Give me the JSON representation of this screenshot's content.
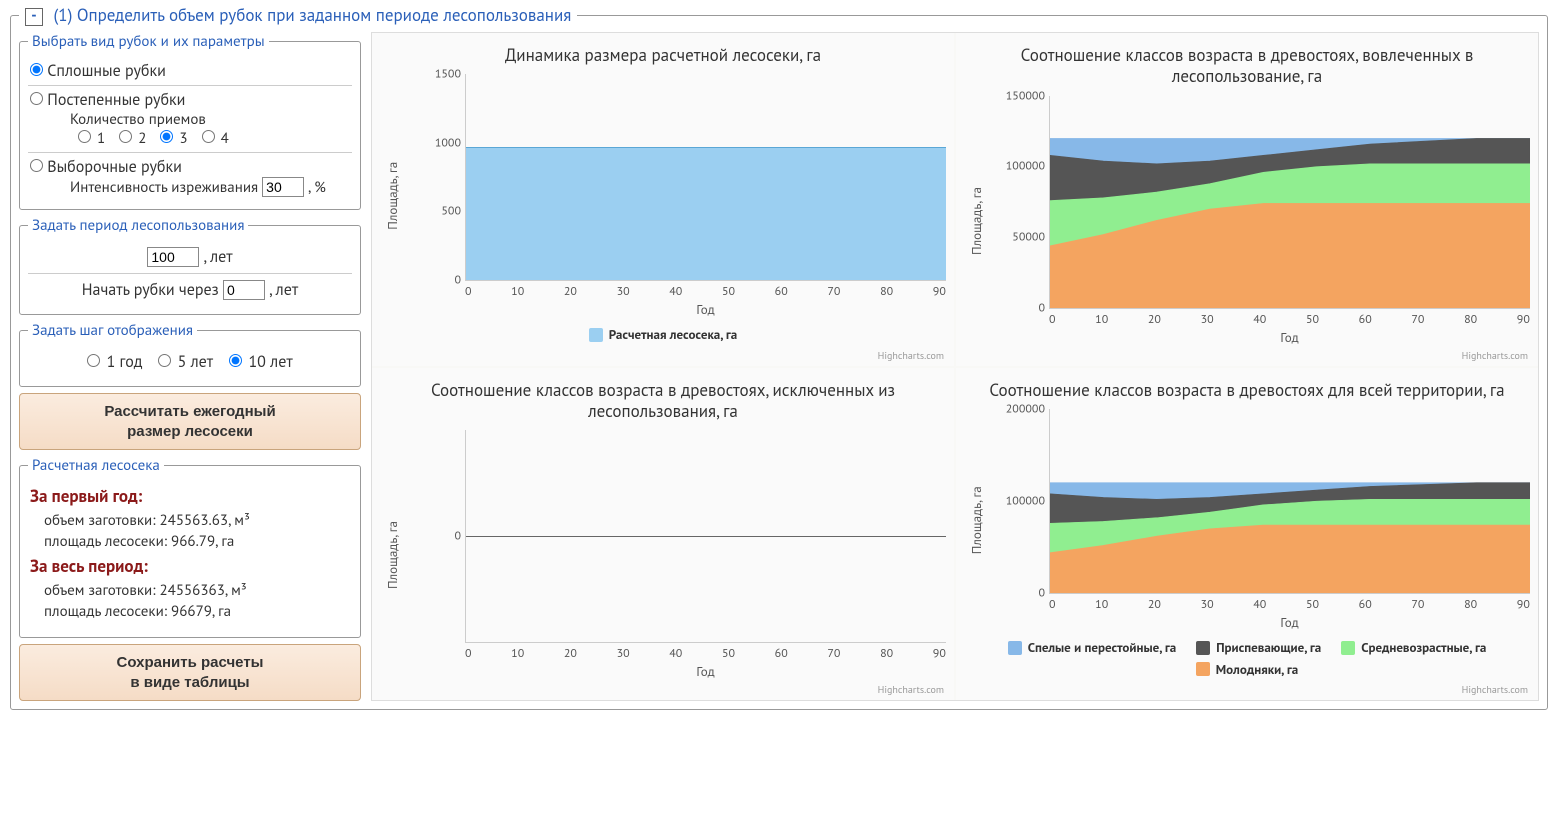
{
  "main_title": "(1) Определить объем рубок при заданном периоде лесопользования",
  "collapse_glyph": "-",
  "cutting_types_legend": "Выбрать вид рубок и их параметры",
  "opt_clear": "Сплошные рубки",
  "opt_gradual": "Постепенные рубки",
  "gradual_count_label": "Количество приемов",
  "gradual_options": [
    "1",
    "2",
    "3",
    "4"
  ],
  "gradual_selected": "3",
  "opt_selective": "Выборочные рубки",
  "selective_intensity_label": "Интенсивность изреживания",
  "selective_intensity_value": "30",
  "selective_intensity_unit": ", %",
  "period_legend": "Задать период лесопользования",
  "period_value": "100",
  "period_unit": ", лет",
  "start_after_label": "Начать рубки через",
  "start_after_value": "0",
  "start_after_unit": ", лет",
  "step_legend": "Задать шаг отображения",
  "step_options": [
    "1 год",
    "5 лет",
    "10 лет"
  ],
  "step_selected": "10 лет",
  "calc_btn_l1": "Рассчитать ежегодный",
  "calc_btn_l2": "размер лесосеки",
  "results_legend": "Расчетная лесосека",
  "first_year_title": "За первый год:",
  "first_year_volume": "объем заготовки: 245563.63, м³",
  "first_year_area": "площадь лесосеки: 966.79, га",
  "whole_period_title": "За весь период:",
  "whole_period_volume": "объем заготовки: 24556363, м³",
  "whole_period_area": "площадь лесосеки: 96679, га",
  "save_btn_l1": "Сохранить расчеты",
  "save_btn_l2": "в виде таблицы",
  "credit_text": "Highcharts.com",
  "chart1": {
    "title": "Динамика размера расчетной лесосеки, га",
    "ylabel": "Площадь, га",
    "xlabel": "Год",
    "ylim": [
      0,
      1500
    ],
    "ytick_step": 500,
    "xlim": [
      0,
      95
    ],
    "xtick_step": 10,
    "series_value": 970,
    "series_color": "#9bcff1",
    "series_border": "#5aa7d6",
    "legend_label": "Расчетная лесосека, га"
  },
  "chart2": {
    "title": "Соотношение классов возраста в древостоях, вовлеченных в лесопользование, га",
    "ylabel": "Площадь, га",
    "xlabel": "Год",
    "ylim": [
      0,
      150000
    ],
    "ytick_step": 50000,
    "xlim": [
      0,
      95
    ],
    "xtick_step": 10,
    "series": [
      {
        "name": "Молодняки, га",
        "color": "#f4a460",
        "values": [
          44000,
          52000,
          62000,
          70000,
          74000,
          74000,
          74000,
          74000,
          74000,
          74000
        ]
      },
      {
        "name": "Средневозрастные, га",
        "color": "#90ee90",
        "values": [
          76000,
          78000,
          82000,
          88000,
          96000,
          100000,
          102000,
          102000,
          102000,
          102000
        ]
      },
      {
        "name": "Приспевающие, га",
        "color": "#555555",
        "values": [
          108000,
          104000,
          102000,
          104000,
          108000,
          112000,
          116000,
          118000,
          120000,
          120000
        ]
      },
      {
        "name": "Спелые и перестойные, га",
        "color": "#87b8e8",
        "values": [
          120000,
          120000,
          120000,
          120000,
          120000,
          120000,
          120000,
          120000,
          120000,
          120000
        ]
      }
    ]
  },
  "chart3": {
    "title": "Соотношение классов возраста в древостоях, исключенных из лесопользования, га",
    "ylabel": "Площадь, га",
    "xlabel": "Год",
    "ylim": [
      -1,
      1
    ],
    "ytick_step": 1,
    "ytick_label_only": "0",
    "xlim": [
      0,
      95
    ],
    "xtick_step": 10
  },
  "chart4": {
    "title": "Соотношение классов возраста в древостоях для всей территории, га",
    "ylabel": "Площадь, га",
    "xlabel": "Год",
    "ylim": [
      0,
      200000
    ],
    "ytick_step": 100000,
    "xlim": [
      0,
      95
    ],
    "xtick_step": 10,
    "series": [
      {
        "name": "Молодняки, га",
        "color": "#f4a460",
        "values": [
          44000,
          52000,
          62000,
          70000,
          74000,
          74000,
          74000,
          74000,
          74000,
          74000
        ]
      },
      {
        "name": "Средневозрастные, га",
        "color": "#90ee90",
        "values": [
          76000,
          78000,
          82000,
          88000,
          96000,
          100000,
          102000,
          102000,
          102000,
          102000
        ]
      },
      {
        "name": "Приспевающие, га",
        "color": "#555555",
        "values": [
          108000,
          104000,
          102000,
          104000,
          108000,
          112000,
          116000,
          118000,
          120000,
          120000
        ]
      },
      {
        "name": "Спелые и перестойные, га",
        "color": "#87b8e8",
        "values": [
          120000,
          120000,
          120000,
          120000,
          120000,
          120000,
          120000,
          120000,
          120000,
          120000
        ]
      }
    ],
    "legend_order": [
      "Спелые и перестойные, га",
      "Приспевающие, га",
      "Средневозрастные, га",
      "Молодняки, га"
    ],
    "legend_colors": {
      "Спелые и перестойные, га": "#87b8e8",
      "Приспевающие, га": "#555555",
      "Средневозрастные, га": "#90ee90",
      "Молодняки, га": "#f4a460"
    }
  }
}
